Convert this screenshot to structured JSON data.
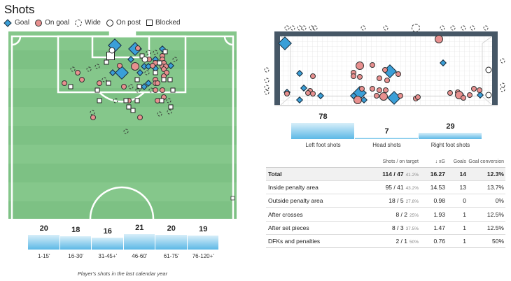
{
  "title": "Shots",
  "legend": [
    {
      "key": "goal",
      "label": "Goal"
    },
    {
      "key": "on_goal",
      "label": "On goal"
    },
    {
      "key": "wide",
      "label": "Wide"
    },
    {
      "key": "on_post",
      "label": "On post"
    },
    {
      "key": "blocked",
      "label": "Blocked"
    }
  ],
  "colors": {
    "goal": "#3a9fd8",
    "on_goal": "#e8908f",
    "pitch": "#85c78b",
    "frame": "#465766"
  },
  "pitch_shots_m": {
    "goal": [
      [
        31.6,
        2.7,
        1
      ],
      [
        37.8,
        3.7,
        1
      ],
      [
        33.8,
        10.7,
        1
      ],
      [
        31.0,
        10.7,
        0
      ],
      [
        36.6,
        6.8,
        0
      ],
      [
        40.6,
        8.9,
        0
      ],
      [
        41.9,
        8.9,
        0
      ],
      [
        44.1,
        6.8,
        0
      ],
      [
        46.2,
        3.7,
        0
      ],
      [
        44.1,
        9.5,
        0
      ],
      [
        39.4,
        10.7,
        0
      ],
      [
        41.9,
        13.8,
        0
      ],
      [
        40.6,
        14.8,
        0
      ],
      [
        48.8,
        8.7,
        0
      ]
    ],
    "on_goal": [
      [
        38.7,
        3.5,
        0
      ],
      [
        33.1,
        8.7,
        0
      ],
      [
        37.8,
        8.9,
        1
      ],
      [
        42.2,
        6.8,
        0
      ],
      [
        44.1,
        7.8,
        0
      ],
      [
        46.2,
        5.8,
        0
      ],
      [
        46.2,
        6.8,
        0
      ],
      [
        46.7,
        7.8,
        0
      ],
      [
        46.2,
        8.9,
        0
      ],
      [
        47.3,
        8.9,
        0
      ],
      [
        46.7,
        9.7,
        0
      ],
      [
        47.5,
        10.7,
        0
      ],
      [
        46.7,
        11.8,
        0
      ],
      [
        44.1,
        12.8,
        0
      ],
      [
        44.1,
        13.8,
        0
      ],
      [
        44.7,
        13.8,
        0
      ],
      [
        44.1,
        15.9,
        0
      ],
      [
        46.2,
        15.9,
        0
      ],
      [
        20.2,
        10.7,
        0
      ],
      [
        21.5,
        12.8,
        0
      ],
      [
        26.9,
        13.8,
        0
      ],
      [
        16.1,
        13.8,
        0
      ],
      [
        34.4,
        14.8,
        0
      ],
      [
        35.9,
        19.0,
        0
      ],
      [
        44.7,
        19.0,
        0
      ],
      [
        46.7,
        17.9,
        0
      ],
      [
        24.9,
        23.9,
        0
      ],
      [
        39.4,
        23.9,
        0
      ],
      [
        43.2,
        8.7,
        0
      ]
    ],
    "blocked": [
      [
        30.3,
        5.8,
        1
      ],
      [
        29.0,
        7.6,
        0
      ],
      [
        40.0,
        5.8,
        0
      ],
      [
        18.1,
        14.8,
        0
      ],
      [
        26.2,
        15.9,
        0
      ],
      [
        29.7,
        13.8,
        0
      ],
      [
        38.5,
        12.8,
        0
      ],
      [
        39.1,
        14.8,
        0
      ],
      [
        44.1,
        10.7,
        0
      ],
      [
        46.7,
        12.8,
        0
      ],
      [
        48.6,
        12.8,
        0
      ],
      [
        49.5,
        15.9,
        0
      ],
      [
        26.9,
        19.0,
        0
      ],
      [
        35.1,
        19.0,
        0
      ],
      [
        38.5,
        19.0,
        0
      ],
      [
        35.9,
        20.8,
        0
      ],
      [
        37.2,
        21.9,
        0
      ],
      [
        48.8,
        20.8,
        0
      ],
      [
        46.0,
        19.0,
        0
      ],
      [
        47.1,
        4.5,
        0
      ],
      [
        45.4,
        7.8,
        0
      ]
    ],
    "wide": [
      [
        18.7,
        9.7,
        0
      ],
      [
        23.7,
        9.7,
        0
      ],
      [
        26.2,
        8.9,
        0
      ],
      [
        28.4,
        12.8,
        0
      ],
      [
        36.6,
        14.8,
        0
      ],
      [
        38.7,
        15.9,
        0
      ],
      [
        41.5,
        10.7,
        0
      ],
      [
        42.8,
        15.9,
        0
      ],
      [
        50.1,
        6.8,
        0
      ],
      [
        44.1,
        4.7,
        0
      ],
      [
        41.9,
        4.7,
        0
      ],
      [
        31.8,
        19.0,
        0
      ],
      [
        48.2,
        19.0,
        0
      ],
      [
        45.4,
        22.9,
        0
      ],
      [
        35.1,
        28.0,
        0
      ],
      [
        48.4,
        22.3,
        0
      ],
      [
        24.7,
        22.5,
        0
      ]
    ],
    "on_post": [
      [
        30.8,
        4.1,
        0
      ],
      [
        40.9,
        6.8,
        0
      ]
    ]
  },
  "goal_shots_m": {
    "goal": [
      [
        0.15,
        2.2,
        1
      ],
      [
        0.65,
        1.12,
        0
      ],
      [
        0.8,
        0.6,
        0
      ],
      [
        0.22,
        0.45,
        0
      ],
      [
        0.65,
        0.18,
        0
      ],
      [
        1.38,
        0.32,
        0
      ],
      [
        2.74,
        0.42,
        1
      ],
      [
        2.52,
        0.32,
        0
      ],
      [
        2.88,
        0.18,
        0
      ],
      [
        3.78,
        1.2,
        1
      ],
      [
        3.92,
        0.25,
        1
      ],
      [
        5.62,
        1.5,
        0
      ],
      [
        6.22,
        0.38,
        0
      ],
      [
        6.9,
        0.35,
        0
      ]
    ],
    "on_goal": [
      [
        5.47,
        2.35,
        1
      ],
      [
        2.74,
        1.4,
        1
      ],
      [
        3.17,
        1.43,
        0
      ],
      [
        1.11,
        1.03,
        0
      ],
      [
        2.52,
        1.15,
        0
      ],
      [
        2.52,
        1.03,
        0
      ],
      [
        2.74,
        1.0,
        0
      ],
      [
        3.41,
        0.95,
        0
      ],
      [
        3.68,
        0.88,
        0
      ],
      [
        4.07,
        1.1,
        0
      ],
      [
        3.61,
        1.25,
        0
      ],
      [
        1.02,
        0.5,
        0
      ],
      [
        0.94,
        0.43,
        0
      ],
      [
        1.11,
        0.4,
        0
      ],
      [
        0.22,
        0.4,
        0
      ],
      [
        2.81,
        0.58,
        0
      ],
      [
        3.17,
        0.58,
        0
      ],
      [
        3.41,
        0.53,
        0
      ],
      [
        3.63,
        0.53,
        0
      ],
      [
        3.32,
        0.33,
        0
      ],
      [
        3.56,
        0.3,
        1
      ],
      [
        2.66,
        0.18,
        1
      ],
      [
        4.14,
        0.33,
        0
      ],
      [
        4.67,
        0.23,
        0
      ],
      [
        4.75,
        0.28,
        0
      ],
      [
        5.86,
        0.43,
        0
      ],
      [
        6.13,
        0.45,
        0
      ],
      [
        6.17,
        0.35,
        1
      ],
      [
        6.32,
        0.25,
        0
      ],
      [
        6.54,
        0.35,
        0
      ],
      [
        6.68,
        0.58,
        0
      ],
      [
        6.88,
        0.53,
        0
      ]
    ],
    "on_post": [
      [
        7.19,
        1.25,
        0
      ],
      [
        7.19,
        0.35,
        0
      ]
    ],
    "wide": [
      [
        0.22,
        2.75,
        0
      ],
      [
        0.41,
        2.75,
        0
      ],
      [
        0.65,
        2.75,
        0
      ],
      [
        0.8,
        2.75,
        0
      ],
      [
        1.07,
        2.75,
        0
      ],
      [
        1.19,
        2.75,
        0
      ],
      [
        2.86,
        2.75,
        0
      ],
      [
        3.63,
        2.75,
        0
      ],
      [
        4.67,
        2.75,
        1
      ],
      [
        5.59,
        2.75,
        0
      ],
      [
        5.96,
        2.75,
        0
      ],
      [
        6.32,
        2.75,
        0
      ],
      [
        6.63,
        2.75,
        0
      ],
      [
        7.09,
        2.75,
        0
      ],
      [
        -0.48,
        1.25,
        0
      ],
      [
        -0.48,
        0.88,
        0
      ],
      [
        -0.48,
        0.63,
        0
      ],
      [
        -0.48,
        0.45,
        0
      ],
      [
        7.68,
        1.58,
        0
      ],
      [
        7.68,
        0.7,
        0
      ],
      [
        7.68,
        0.55,
        0
      ]
    ]
  },
  "foot": [
    {
      "label": "Left foot shots",
      "value": "78",
      "n": 78
    },
    {
      "label": "Head shots",
      "value": "7",
      "n": 7
    },
    {
      "label": "Right foot shots",
      "value": "29",
      "n": 29
    }
  ],
  "periods": [
    {
      "label": "1-15'",
      "value": "20",
      "n": 20
    },
    {
      "label": "16-30'",
      "value": "18",
      "n": 18
    },
    {
      "label": "31-45+'",
      "value": "16",
      "n": 16
    },
    {
      "label": "46-60'",
      "value": "21",
      "n": 21
    },
    {
      "label": "61-75'",
      "value": "20",
      "n": 20
    },
    {
      "label": "76-120+'",
      "value": "19",
      "n": 19
    }
  ],
  "caption": "Player's shots in the last calendar year",
  "table": {
    "headers": [
      "",
      "Shots / on target",
      "↓ xG",
      "Goals",
      "Goal conversion"
    ],
    "rows": [
      {
        "label": "Total",
        "shots": "114 / 47",
        "pct": "41.2%",
        "xg": "16.27",
        "goals": "14",
        "conv": "12.3%"
      },
      {
        "label": "Inside penalty area",
        "shots": "95 / 41",
        "pct": "43.2%",
        "xg": "14.53",
        "goals": "13",
        "conv": "13.7%"
      },
      {
        "label": "Outside penalty area",
        "shots": "18 / 5",
        "pct": "27.8%",
        "xg": "0.98",
        "goals": "0",
        "conv": "0%"
      },
      {
        "label": "After crosses",
        "shots": "8 / 2",
        "pct": "25%",
        "xg": "1.93",
        "goals": "1",
        "conv": "12.5%"
      },
      {
        "label": "After set pieces",
        "shots": "8 / 3",
        "pct": "37.5%",
        "xg": "1.47",
        "goals": "1",
        "conv": "12.5%"
      },
      {
        "label": "DFKs and penalties",
        "shots": "2 / 1",
        "pct": "50%",
        "xg": "0.76",
        "goals": "1",
        "conv": "50%"
      }
    ]
  }
}
